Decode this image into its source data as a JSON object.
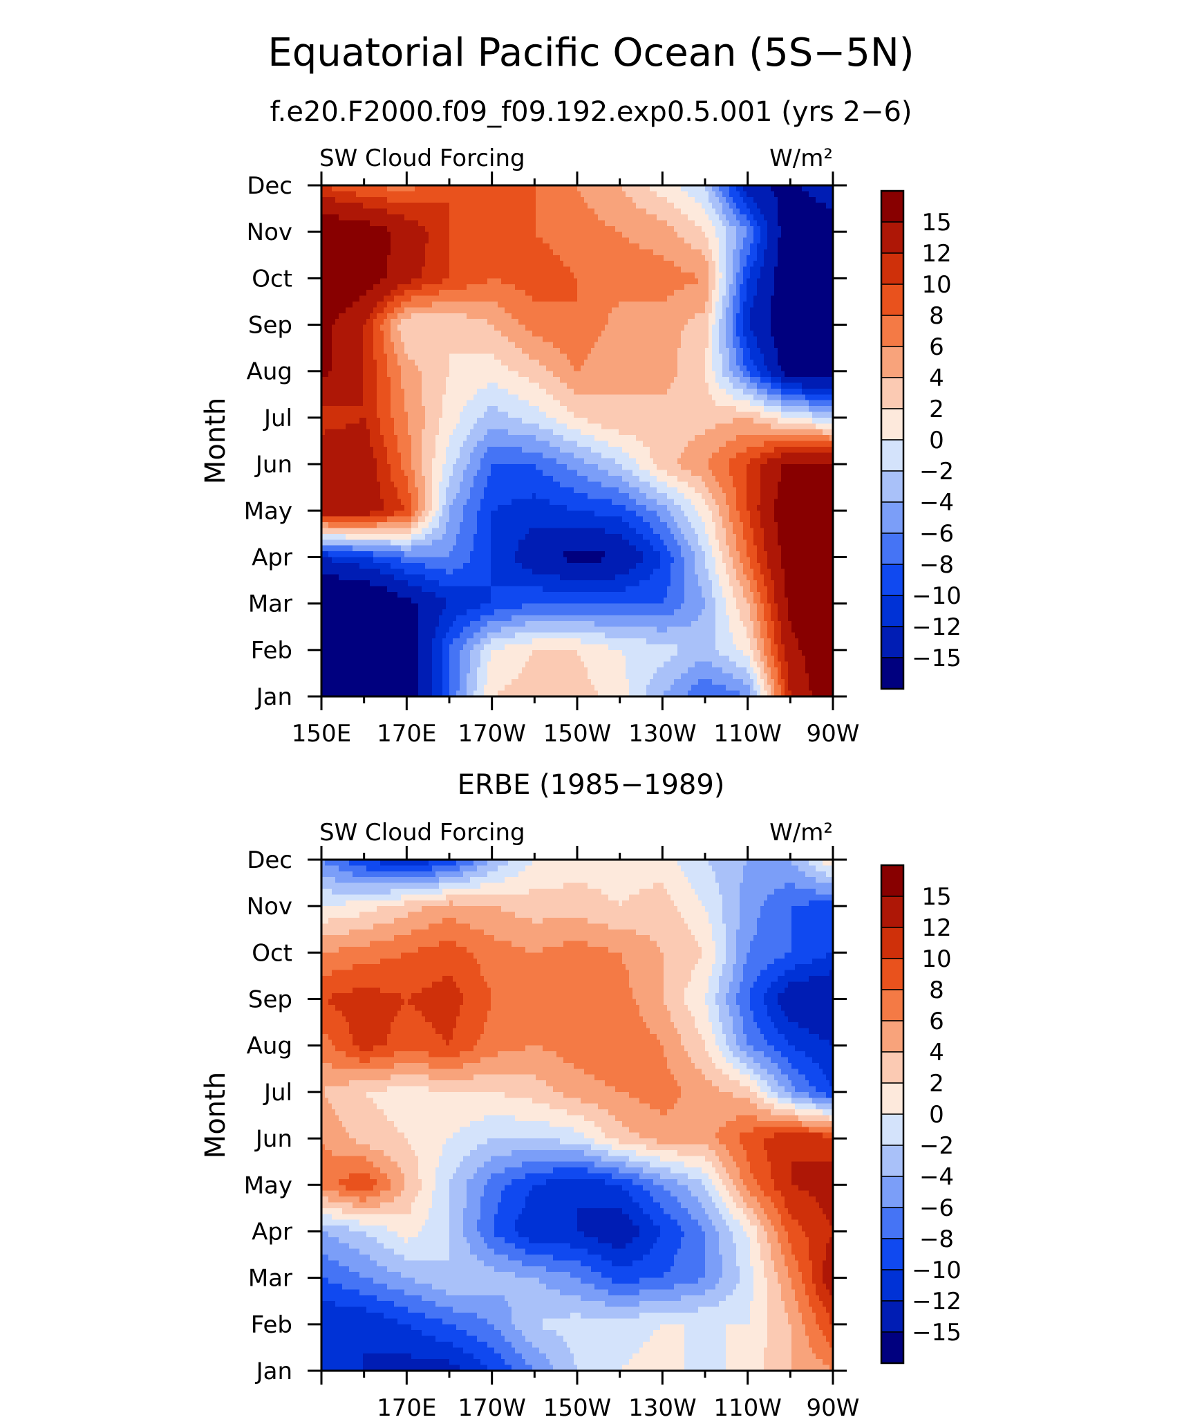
{
  "title": "Equatorial Pacific Ocean (5S−5N)",
  "chart_data": [
    {
      "type": "heatmap",
      "subtitle": "f.e20.F2000.f09_f09.192.exp0.5.001 (yrs 2−6)",
      "variable_label": "SW Cloud Forcing",
      "units": "W/m²",
      "ylabel": "Month",
      "x_tick_labels": [
        "150E",
        "170E",
        "170W",
        "150W",
        "130W",
        "110W",
        "90W"
      ],
      "y_tick_labels": [
        "Jan",
        "Feb",
        "Mar",
        "Apr",
        "May",
        "Jun",
        "Jul",
        "Aug",
        "Sep",
        "Oct",
        "Nov",
        "Dec"
      ],
      "xlim": [
        150,
        270
      ],
      "colorbar_labels": [
        "15",
        "12",
        "10",
        "8",
        "6",
        "4",
        "2",
        "0",
        "−2",
        "−4",
        "−6",
        "−8",
        "−10",
        "−12",
        "−15"
      ],
      "grid_x": [
        150,
        160,
        170,
        180,
        190,
        200,
        210,
        220,
        230,
        240,
        250,
        260,
        270
      ],
      "values": [
        [
          -20,
          -20,
          -18,
          -8,
          2,
          3,
          3,
          1,
          -4,
          -8,
          -6,
          12,
          18
        ],
        [
          -20,
          -20,
          -18,
          -8,
          0,
          2,
          2,
          0,
          -1,
          -3,
          1,
          14,
          18
        ],
        [
          -20,
          -20,
          -16,
          -12,
          -10,
          -8,
          -8,
          -8,
          -8,
          -4,
          4,
          16,
          18
        ],
        [
          -12,
          -10,
          -7,
          -6,
          -10,
          -14,
          -16,
          -15,
          -10,
          -2,
          8,
          17,
          18
        ],
        [
          14,
          14,
          10,
          -4,
          -10,
          -11,
          -10,
          -9,
          -5,
          1,
          10,
          18,
          18
        ],
        [
          14,
          14,
          7,
          -1,
          -8,
          -8,
          -5,
          -2,
          3,
          6,
          10,
          16,
          16
        ],
        [
          11,
          12,
          6,
          1,
          -3,
          -1,
          2,
          4,
          3,
          3,
          4,
          0,
          -2
        ],
        [
          16,
          12,
          5,
          2,
          1,
          3,
          6,
          4,
          5,
          2,
          -8,
          -17,
          -18
        ],
        [
          16,
          12,
          2,
          2,
          4,
          7,
          8,
          5,
          5,
          3,
          -12,
          -18,
          -18
        ],
        [
          18,
          17,
          13,
          10,
          8,
          9,
          8,
          7,
          7,
          6,
          -10,
          -18,
          -18
        ],
        [
          18,
          17,
          14,
          10,
          9,
          8,
          7,
          6,
          5,
          2,
          -6,
          -18,
          -18
        ],
        [
          10,
          8,
          7,
          10,
          10,
          8,
          6,
          4,
          1,
          -2,
          -14,
          -16,
          -12
        ]
      ]
    },
    {
      "type": "heatmap",
      "subtitle": "ERBE (1985−1989)",
      "variable_label": "SW Cloud Forcing",
      "units": "W/m²",
      "ylabel": "Month",
      "x_tick_labels": [
        "170E",
        "170W",
        "150W",
        "130W",
        "110W",
        "90W"
      ],
      "y_tick_labels": [
        "Jan",
        "Feb",
        "Mar",
        "Apr",
        "May",
        "Jun",
        "Jul",
        "Aug",
        "Sep",
        "Oct",
        "Nov",
        "Dec"
      ],
      "xlim": [
        150,
        270
      ],
      "colorbar_labels": [
        "15",
        "12",
        "10",
        "8",
        "6",
        "4",
        "2",
        "0",
        "−2",
        "−4",
        "−6",
        "−8",
        "−10",
        "−12",
        "−15"
      ],
      "grid_x": [
        150,
        160,
        170,
        180,
        190,
        200,
        210,
        220,
        230,
        240,
        250,
        260,
        270
      ],
      "values": [
        [
          -10,
          -12,
          -13,
          -13,
          -10,
          -6,
          -2,
          0,
          1,
          -1,
          1,
          4,
          6
        ],
        [
          -12,
          -12,
          -10,
          -8,
          -6,
          -2,
          -1,
          -1,
          0,
          0,
          0,
          4,
          10
        ],
        [
          -8,
          -6,
          -4,
          -2,
          -3,
          -4,
          -6,
          -9,
          -8,
          -6,
          -1,
          6,
          14
        ],
        [
          -4,
          -2,
          1,
          -2,
          -8,
          -12,
          -12,
          -14,
          -10,
          -6,
          0,
          9,
          12
        ],
        [
          7,
          10,
          4,
          -2,
          -7,
          -10,
          -12,
          -10,
          -6,
          -2,
          7,
          12,
          13
        ],
        [
          6,
          3,
          2,
          0,
          -2,
          -2,
          -1,
          3,
          5,
          5,
          9,
          12,
          11
        ],
        [
          4,
          2,
          1,
          2,
          2,
          3,
          5,
          6,
          7,
          5,
          3,
          -5,
          -10
        ],
        [
          7,
          11,
          9,
          10,
          7,
          6,
          7,
          8,
          6,
          2,
          -6,
          -10,
          -12
        ],
        [
          10,
          11,
          10,
          11,
          8,
          6,
          8,
          7,
          4,
          0,
          -8,
          -14,
          -15
        ],
        [
          6,
          7,
          8,
          9,
          7,
          6,
          7,
          6,
          4,
          2,
          -6,
          -8,
          -10
        ],
        [
          0,
          1,
          3,
          5,
          4,
          3,
          3,
          2,
          3,
          0,
          -5,
          -8,
          -9
        ],
        [
          -6,
          -10,
          -12,
          -10,
          -4,
          0,
          1,
          1,
          1,
          -2,
          -4,
          -4,
          2
        ]
      ]
    }
  ]
}
